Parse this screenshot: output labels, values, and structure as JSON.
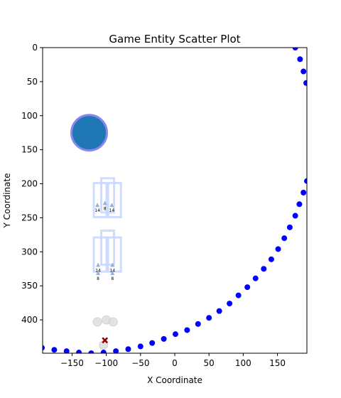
{
  "chart_data": {
    "type": "scatter",
    "title": "Game Entity Scatter Plot",
    "xlabel": "X Coordinate",
    "ylabel": "Y Coordinate",
    "xlim": [
      -193,
      193
    ],
    "ylim": [
      449,
      0
    ],
    "y_inverted": true,
    "grid": false,
    "xticks": [
      -150,
      -100,
      -50,
      0,
      50,
      100,
      150
    ],
    "yticks": [
      0,
      50,
      100,
      150,
      200,
      250,
      300,
      350,
      400
    ],
    "colors": {
      "path": "#0000ff",
      "big_circle": "#1f77b4",
      "big_circle_edge": "#8888ee",
      "boxes": "#c8d6ff",
      "arrows": "#8aa8d8",
      "blobs": "#dddddd",
      "cross": "#8b0000"
    },
    "series": [
      {
        "marker": "circle",
        "points": [
          [
            176,
            0
          ],
          [
            183,
            17
          ],
          [
            188,
            35
          ],
          [
            192,
            52
          ],
          [
            193,
            196
          ],
          [
            188,
            213
          ],
          [
            182,
            230
          ],
          [
            176,
            247
          ],
          [
            168,
            264
          ],
          [
            160,
            280
          ],
          [
            151,
            296
          ],
          [
            141,
            311
          ],
          [
            130,
            325
          ],
          [
            118,
            339
          ],
          [
            106,
            352
          ],
          [
            93,
            364
          ],
          [
            80,
            376
          ],
          [
            65,
            387
          ],
          [
            50,
            397
          ],
          [
            34,
            406
          ],
          [
            18,
            415
          ],
          [
            1,
            421
          ],
          [
            -16,
            428
          ],
          [
            -33,
            434
          ],
          [
            -50,
            439
          ],
          [
            -68,
            443
          ],
          [
            -86,
            446
          ],
          [
            -104,
            448
          ],
          [
            -122,
            449
          ],
          [
            -140,
            448
          ],
          [
            -158,
            446
          ],
          [
            -176,
            444
          ],
          [
            -194,
            441
          ]
        ]
      },
      {
        "marker": "big-circle",
        "points": [
          [
            -125,
            125
          ]
        ]
      },
      {
        "marker": "box",
        "points": [
          [
            -109,
            224
          ],
          [
            -98,
            217
          ],
          [
            -88,
            224
          ],
          [
            -109,
            304
          ],
          [
            -98,
            294
          ],
          [
            -88,
            304
          ]
        ]
      },
      {
        "marker": "arrow",
        "points": [
          {
            "x": -113,
            "y": 231,
            "label": "14"
          },
          {
            "x": -102,
            "y": 228,
            "label": "8"
          },
          {
            "x": -92,
            "y": 231,
            "label": "14"
          },
          {
            "x": -112,
            "y": 319,
            "label": "14"
          },
          {
            "x": -112,
            "y": 331,
            "label": "8"
          },
          {
            "x": -91,
            "y": 319,
            "label": "14"
          },
          {
            "x": -91,
            "y": 331,
            "label": "8"
          }
        ]
      },
      {
        "marker": "blob",
        "points": [
          [
            -113,
            403
          ],
          [
            -100,
            400
          ],
          [
            -90,
            403
          ],
          [
            -104,
            437
          ]
        ]
      },
      {
        "marker": "x",
        "points": [
          [
            -102,
            430
          ]
        ]
      }
    ]
  }
}
